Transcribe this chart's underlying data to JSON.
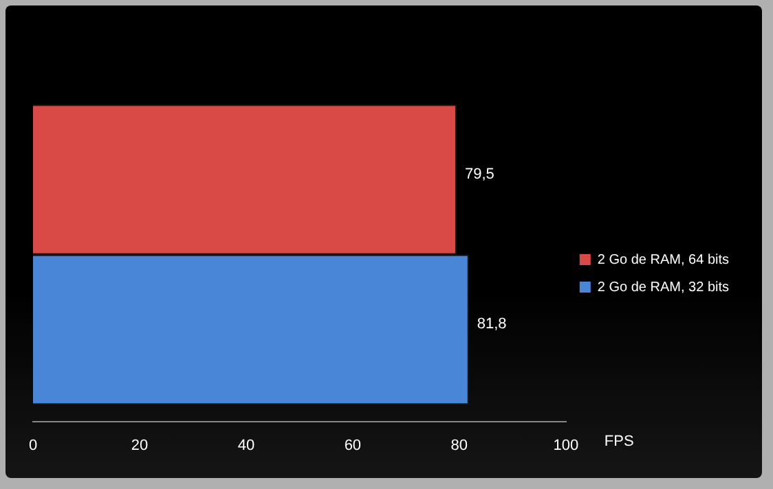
{
  "chart_data": {
    "type": "bar",
    "orientation": "horizontal",
    "categories": [
      null
    ],
    "series": [
      {
        "name": "2 Go de RAM, 64 bits",
        "color": "#d94a47",
        "values": [
          79.5
        ],
        "value_labels": [
          "79,5"
        ]
      },
      {
        "name": "2 Go de RAM, 32 bits",
        "color": "#4a86d8",
        "values": [
          81.8
        ],
        "value_labels": [
          "81,8"
        ]
      }
    ],
    "xlim": [
      0,
      100
    ],
    "xticks": [
      0,
      20,
      40,
      60,
      80,
      100
    ],
    "xlabel": "FPS",
    "grid": false,
    "legend": "right"
  }
}
